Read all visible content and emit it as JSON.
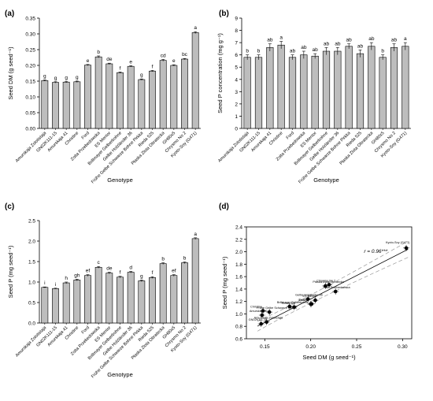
{
  "genotypes": [
    "Amurskaja Zolotistaja",
    "GN02K111-15",
    "Amurskaja 41",
    "Christine",
    "Ford",
    "Zolta Przebedowska",
    "ES Mentor",
    "Brillmayer Gelberbohne",
    "Gelbe Holzländer 36",
    "Frühe Gelbe Schwarze Bohne Pirkka",
    "Rieda 525",
    "Płaska Zlota Obratecka",
    "GH80x5",
    "Chrysmo No 2",
    "Kyoto-Soy (G471)"
  ],
  "chart_data": [
    {
      "panel": "(a)",
      "type": "bar",
      "xlabel": "Genotype",
      "ylabel": "Seed DM (g seed⁻¹)",
      "ylim": [
        0,
        0.35
      ],
      "yticks": [
        "0.00",
        "0.05",
        "0.10",
        "0.15",
        "0.20",
        "0.25",
        "0.30",
        "0.35"
      ],
      "values": [
        0.152,
        0.146,
        0.147,
        0.148,
        0.201,
        0.227,
        0.205,
        0.177,
        0.197,
        0.155,
        0.182,
        0.216,
        0.2,
        0.22,
        0.304
      ],
      "errors": [
        0.002,
        0.002,
        0.002,
        0.002,
        0.002,
        0.003,
        0.002,
        0.002,
        0.002,
        0.002,
        0.002,
        0.003,
        0.002,
        0.002,
        0.003
      ],
      "letters": [
        "g",
        "g",
        "g",
        "g",
        "e",
        "b",
        "de",
        "f",
        "e",
        "g",
        "f",
        "cd",
        "e",
        "bc",
        "a"
      ]
    },
    {
      "panel": "(b)",
      "type": "bar",
      "xlabel": "Genotype",
      "ylabel": "Seed P concentration (mg g⁻¹)",
      "ylim": [
        0,
        9
      ],
      "yticks": [
        "0",
        "1",
        "2",
        "3",
        "4",
        "5",
        "6",
        "7",
        "8",
        "9"
      ],
      "values": [
        5.8,
        5.8,
        6.6,
        6.8,
        5.8,
        6.0,
        5.9,
        6.3,
        6.3,
        6.7,
        6.1,
        6.7,
        5.8,
        6.6,
        6.7
      ],
      "errors": [
        0.2,
        0.2,
        0.3,
        0.3,
        0.2,
        0.3,
        0.2,
        0.3,
        0.3,
        0.2,
        0.3,
        0.3,
        0.2,
        0.3,
        0.3
      ],
      "letters": [
        "b",
        "b",
        "ab",
        "a",
        "ab",
        "ab",
        "ab",
        "ab",
        "ab",
        "ab",
        "ab",
        "ab",
        "b",
        "ab",
        "a"
      ]
    },
    {
      "panel": "(c)",
      "type": "bar",
      "xlabel": "Genotype",
      "ylabel": "Seed P (mg seed⁻¹)",
      "ylim": [
        0,
        2.5
      ],
      "yticks": [
        "0.0",
        "0.5",
        "1.0",
        "1.5",
        "2.0",
        "2.5"
      ],
      "values": [
        0.87,
        0.84,
        0.98,
        1.05,
        1.16,
        1.36,
        1.22,
        1.12,
        1.24,
        1.03,
        1.11,
        1.45,
        1.16,
        1.47,
        2.06
      ],
      "errors": [
        0.01,
        0.01,
        0.02,
        0.02,
        0.02,
        0.02,
        0.02,
        0.02,
        0.02,
        0.02,
        0.02,
        0.02,
        0.02,
        0.02,
        0.02
      ],
      "letters": [
        "i",
        "i",
        "h",
        "gh",
        "ef",
        "c",
        "de",
        "f",
        "d",
        "g",
        "f",
        "b",
        "ef",
        "b",
        "a"
      ]
    },
    {
      "panel": "(d)",
      "type": "scatter",
      "xlabel": "Seed DM (g seed⁻¹)",
      "ylabel": "Seed P (mg seed⁻¹)",
      "xlim": [
        0.13,
        0.31
      ],
      "ylim": [
        0.6,
        2.4
      ],
      "xticks": [
        0.15,
        0.2,
        0.25,
        0.3
      ],
      "xtick_labels": [
        "0.15",
        "0.20",
        "0.25",
        "0.30"
      ],
      "yticks": [
        0.6,
        0.8,
        1.0,
        1.2,
        1.4,
        1.6,
        1.8,
        2.0,
        2.2,
        2.4
      ],
      "ytick_labels": [
        "0.6",
        "0.8",
        "1.0",
        "1.2",
        "1.4",
        "1.6",
        "1.8",
        "2.0",
        "2.2",
        "2.4"
      ],
      "annotation": "r = 0.96***",
      "points": [
        {
          "x": 0.152,
          "y": 0.87,
          "label": "Amurskaja Zolotistaja"
        },
        {
          "x": 0.146,
          "y": 0.84,
          "label": "GN02K111-15"
        },
        {
          "x": 0.147,
          "y": 0.98,
          "label": "Amurskaja 41"
        },
        {
          "x": 0.148,
          "y": 1.05,
          "label": "Christine"
        },
        {
          "x": 0.201,
          "y": 1.16,
          "label": "Ford"
        },
        {
          "x": 0.227,
          "y": 1.36,
          "label": "Zolta Przebedowska"
        },
        {
          "x": 0.205,
          "y": 1.22,
          "label": "ES Mentor"
        },
        {
          "x": 0.177,
          "y": 1.12,
          "label": "Brillmayer Gelberbohne"
        },
        {
          "x": 0.197,
          "y": 1.24,
          "label": "Gelbe Holzländer 36"
        },
        {
          "x": 0.155,
          "y": 1.03,
          "label": "Frühe Gelbe Schwarze Pirkka"
        },
        {
          "x": 0.182,
          "y": 1.11,
          "label": "Rieda 525"
        },
        {
          "x": 0.216,
          "y": 1.45,
          "label": "Płaska Zlota Obratecka"
        },
        {
          "x": 0.2,
          "y": 1.16,
          "label": "GH80x5"
        },
        {
          "x": 0.22,
          "y": 1.47,
          "label": "Chrysmo No 2"
        },
        {
          "x": 0.304,
          "y": 2.06,
          "label": "Kyoto-Soy (G471)"
        }
      ],
      "regression": {
        "slope": 7.55,
        "intercept": -0.27
      }
    }
  ]
}
